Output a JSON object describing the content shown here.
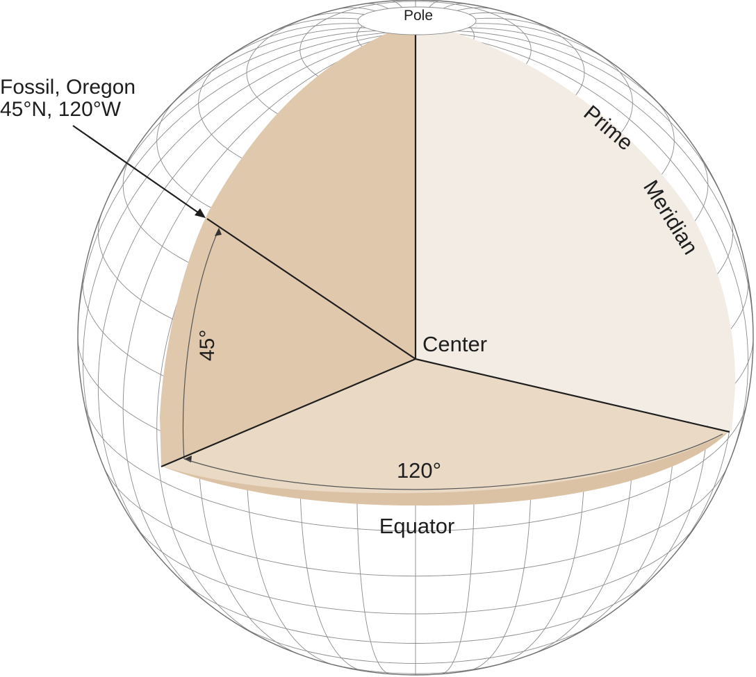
{
  "labels": {
    "pole": "Pole",
    "location_name": "Fossil, Oregon",
    "location_coords": "45°N, 120°W",
    "prime": "Prime",
    "meridian": "Meridian",
    "center": "Center",
    "latitude_angle": "45°",
    "longitude_angle": "120°",
    "equator": "Equator"
  },
  "colors": {
    "back_wedge": "#e0c8ac",
    "prime_meridian_wedge": "#f3ece4",
    "equatorial_wedge": "#e9d9c5",
    "outline": "#1e1e1e"
  }
}
